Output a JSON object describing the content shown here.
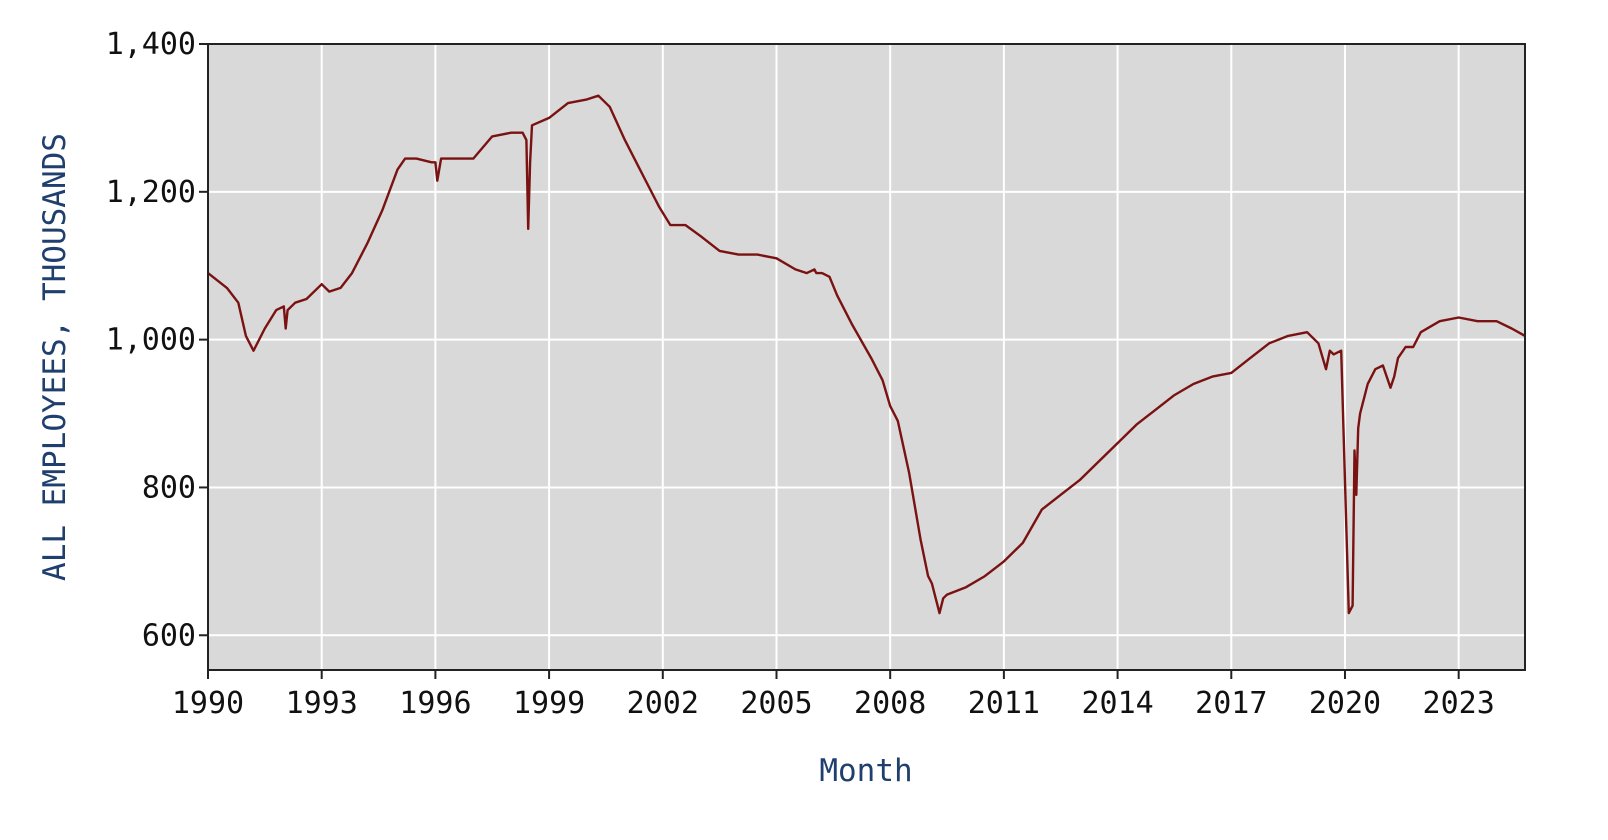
{
  "chart_data": {
    "type": "line",
    "title": "",
    "xlabel": "Month",
    "ylabel": "ALL EMPLOYEES, THOUSANDS",
    "xlim": [
      1990,
      2024.75
    ],
    "ylim": [
      553,
      1400
    ],
    "x_ticks": [
      "1990",
      "1993",
      "1996",
      "1999",
      "2002",
      "2005",
      "2008",
      "2011",
      "2014",
      "2017",
      "2020",
      "2023"
    ],
    "y_ticks": [
      "600",
      "800",
      "1,000",
      "1,200",
      "1,400"
    ],
    "grid": true,
    "colors": {
      "plot_bg": "#d9d9d9",
      "grid": "#ffffff",
      "line": "#7a1212",
      "axis_title": "#1f3f6e"
    },
    "series": [
      {
        "x": [
          1990.0,
          1990.5,
          1990.8,
          1991.0,
          1991.1,
          1991.2,
          1991.5,
          1991.8,
          1992.0,
          1992.05,
          1992.1,
          1992.3,
          1992.6,
          1993.0,
          1993.2,
          1993.5,
          1993.8,
          1994.2,
          1994.6,
          1995.0,
          1995.2,
          1995.5,
          1995.9,
          1996.0,
          1996.05,
          1996.15,
          1996.5,
          1997.0,
          1997.5,
          1998.0,
          1998.3,
          1998.4,
          1998.45,
          1998.5,
          1998.55,
          1999.0,
          1999.5,
          2000.0,
          2000.3,
          2000.6,
          2001.0,
          2001.5,
          2001.9,
          2002.2,
          2002.6,
          2003.0,
          2003.5,
          2004.0,
          2004.5,
          2005.0,
          2005.5,
          2005.8,
          2006.0,
          2006.05,
          2006.2,
          2006.4,
          2006.6,
          2007.0,
          2007.5,
          2007.8,
          2008.0,
          2008.2,
          2008.5,
          2008.8,
          2009.0,
          2009.1,
          2009.2,
          2009.3,
          2009.4,
          2009.5,
          2010.0,
          2010.5,
          2011.0,
          2011.5,
          2012.0,
          2012.5,
          2013.0,
          2013.5,
          2014.0,
          2014.5,
          2015.0,
          2015.5,
          2016.0,
          2016.5,
          2017.0,
          2017.5,
          2018.0,
          2018.5,
          2019.0,
          2019.3,
          2019.5,
          2019.6,
          2019.7,
          2019.9,
          2020.1,
          2020.2,
          2020.25,
          2020.3,
          2020.35,
          2020.4,
          2020.5,
          2020.6,
          2020.8,
          2021.0,
          2021.2,
          2021.3,
          2021.4,
          2021.6,
          2021.8,
          2022.0,
          2022.5,
          2023.0,
          2023.5,
          2023.75,
          2024.0,
          2024.4,
          2024.75
        ],
        "y": [
          1090,
          1070,
          1050,
          1005,
          995,
          985,
          1015,
          1040,
          1045,
          1015,
          1040,
          1050,
          1055,
          1075,
          1065,
          1070,
          1090,
          1130,
          1175,
          1230,
          1245,
          1245,
          1240,
          1240,
          1215,
          1245,
          1245,
          1245,
          1275,
          1280,
          1280,
          1270,
          1150,
          1240,
          1290,
          1300,
          1320,
          1325,
          1330,
          1315,
          1270,
          1220,
          1180,
          1155,
          1155,
          1140,
          1120,
          1115,
          1115,
          1110,
          1095,
          1090,
          1095,
          1090,
          1090,
          1085,
          1060,
          1020,
          975,
          945,
          910,
          890,
          820,
          730,
          680,
          670,
          650,
          630,
          650,
          655,
          665,
          680,
          700,
          725,
          770,
          790,
          810,
          835,
          860,
          885,
          905,
          925,
          940,
          950,
          955,
          975,
          995,
          1005,
          1010,
          995,
          960,
          985,
          980,
          985,
          630,
          640,
          850,
          790,
          880,
          900,
          920,
          940,
          960,
          965,
          935,
          950,
          975,
          990,
          990,
          1010,
          1025,
          1030,
          1025,
          1025,
          1025,
          1015,
          1005
        ]
      }
    ]
  }
}
